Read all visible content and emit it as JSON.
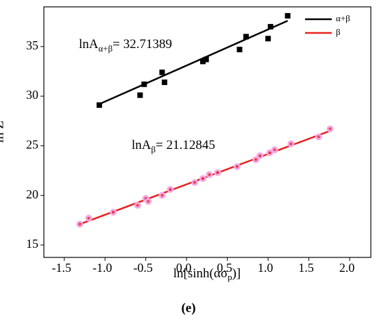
{
  "chart_data": {
    "type": "scatter",
    "xlabel": {
      "main": "ln[sinh(ασ",
      "sub": "p",
      "end": ")]"
    },
    "ylabel": "ln Z",
    "caption": "(e)",
    "xlim": [
      -1.75,
      2.26
    ],
    "ylim": [
      13.75,
      39.0
    ],
    "xticks": [
      -1.5,
      -1.0,
      -0.5,
      0.0,
      0.5,
      1.0,
      1.5,
      2.0
    ],
    "xtick_labels": [
      "-1.5",
      "-1.0",
      "-0.5",
      "0.0",
      "0.5",
      "1.0",
      "1.5",
      "2.0"
    ],
    "yticks": [
      15,
      20,
      25,
      30,
      35
    ],
    "legend": "top-right",
    "annotations": [
      {
        "main": "lnA",
        "sub": "α+β",
        "end": "= 32.71389"
      },
      {
        "main": "lnA",
        "sub": "β",
        "end": "= 21.12845"
      }
    ],
    "series": [
      {
        "name": "α+β",
        "color": "#000000",
        "marker": "square",
        "x": [
          -1.07,
          -0.57,
          -0.52,
          -0.3,
          -0.27,
          0.2,
          0.24,
          0.65,
          0.73,
          1.0,
          1.03,
          1.24
        ],
        "values": [
          29.1,
          30.1,
          31.2,
          32.4,
          31.4,
          33.5,
          33.7,
          34.7,
          36.0,
          35.8,
          37.0,
          38.1
        ],
        "fit": {
          "x": [
            -1.07,
            1.24
          ],
          "y": [
            29.2,
            37.6
          ]
        }
      },
      {
        "name": "β",
        "color": "#e8201f",
        "marker": "circle",
        "x": [
          -1.31,
          -1.2,
          -0.9,
          -0.6,
          -0.5,
          -0.47,
          -0.3,
          -0.2,
          0.1,
          0.2,
          0.28,
          0.38,
          0.62,
          0.85,
          0.9,
          1.02,
          1.08,
          1.28,
          1.62,
          1.76
        ],
        "values": [
          17.1,
          17.7,
          18.3,
          19.0,
          19.7,
          19.4,
          20.0,
          20.6,
          21.3,
          21.7,
          22.1,
          22.3,
          22.9,
          23.6,
          24.0,
          24.3,
          24.6,
          25.2,
          25.9,
          26.7
        ],
        "fit": {
          "x": [
            -1.31,
            1.76
          ],
          "y": [
            17.1,
            26.5
          ]
        }
      }
    ]
  }
}
